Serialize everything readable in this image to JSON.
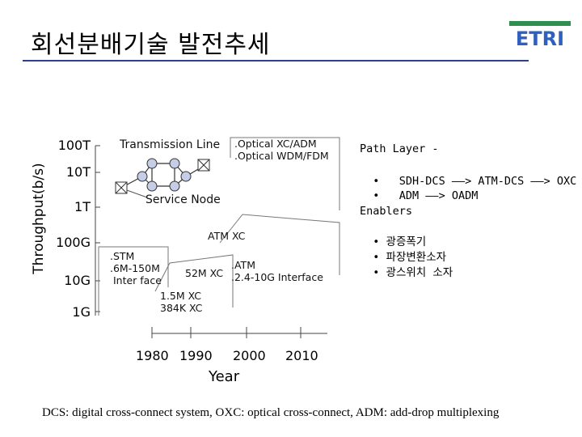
{
  "title": "회선분배기술 발전추세",
  "logo_text": "ETRI",
  "colors": {
    "title_rule": "#2f3f8f",
    "logo_green": "#2f8f4f",
    "logo_blue": "#2f5fbf",
    "node_fill": "#c6cde6"
  },
  "diagram": {
    "ylabel": "Throughput(b/s)",
    "xlabel": "Year",
    "y_ticks": [
      "100T",
      "10T",
      "1T",
      "100G",
      "10G",
      "1G"
    ],
    "x_ticks": [
      "1980",
      "1990",
      "2000",
      "2010"
    ],
    "transmission_line": "Transmission Line",
    "service_node": "Service Node",
    "note_optical": ".Optical XC/ADM\n.Optical WDM/FDM",
    "note_stm": ".STM\n.6M-150M\n Inter face",
    "note_atm_xc": "ATM XC",
    "note_52m": "52M XC",
    "note_atm": ".ATM\n.2.4-10G Interface",
    "note_15m": "1.5M XC\n384K XC"
  },
  "path_layer": {
    "heading": "Path Layer -",
    "items": [
      {
        "bullet": "•",
        "text": "SDH-DCS ——> ATM-DCS ——> OXC"
      },
      {
        "bullet": "•",
        "text": "ADM ——> OADM"
      }
    ]
  },
  "enablers": {
    "heading": "Enablers",
    "items": [
      {
        "bullet": "•",
        "text": "광증폭기"
      },
      {
        "bullet": "•",
        "text": "파장변환소자"
      },
      {
        "bullet": "•",
        "text": "광스위치 소자"
      }
    ]
  },
  "footer": "DCS: digital cross-connect system, OXC: optical cross-connect, ADM: add-drop multiplexing"
}
